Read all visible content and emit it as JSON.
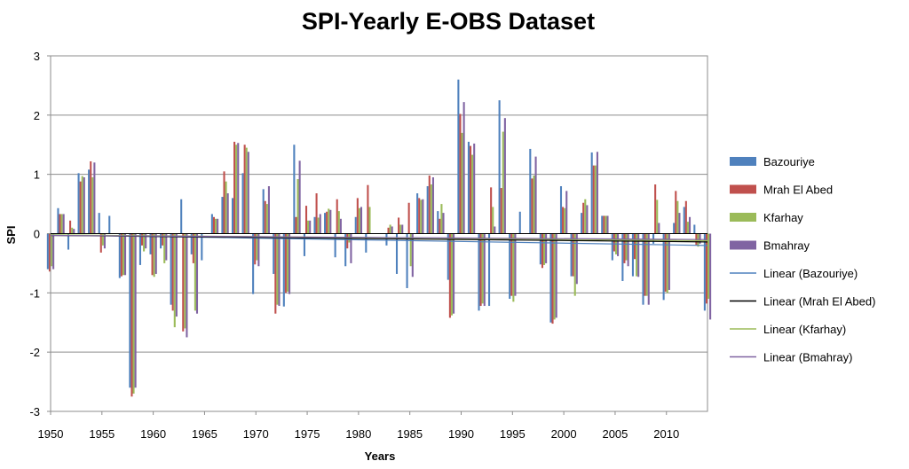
{
  "chart_data": {
    "type": "bar",
    "title": "SPI-Yearly E-OBS Dataset",
    "xlabel": "Years",
    "ylabel": "SPI",
    "ylim": [
      -3,
      3
    ],
    "yticks": [
      3,
      2,
      1,
      0,
      -1,
      -2,
      -3
    ],
    "xlim": [
      1950,
      2014
    ],
    "xticks": [
      1950,
      1955,
      1960,
      1965,
      1970,
      1975,
      1980,
      1985,
      1990,
      1995,
      2000,
      2005,
      2010
    ],
    "grid": true,
    "legend_position": "right",
    "colors": {
      "Bazouriye": "#4f81bd",
      "Mrah El Abed": "#c0504d",
      "Kfarhay": "#9bbb59",
      "Bmahray": "#8064a2",
      "Linear (Bazouriye)": "#4f81bd",
      "Linear (Mrah El Abed)": "#000000",
      "Linear (Kfarhay)": "#9bbb59",
      "Linear (Bmahray)": "#8064a2"
    },
    "years": [
      1950,
      1951,
      1952,
      1953,
      1954,
      1955,
      1956,
      1957,
      1958,
      1959,
      1960,
      1961,
      1962,
      1963,
      1964,
      1965,
      1966,
      1967,
      1968,
      1969,
      1970,
      1971,
      1972,
      1973,
      1974,
      1975,
      1976,
      1977,
      1978,
      1979,
      1980,
      1981,
      1982,
      1983,
      1984,
      1985,
      1986,
      1987,
      1988,
      1989,
      1990,
      1991,
      1992,
      1993,
      1994,
      1995,
      1996,
      1997,
      1998,
      1999,
      2000,
      2001,
      2002,
      2003,
      2004,
      2005,
      2006,
      2007,
      2008,
      2009,
      2010,
      2011,
      2012,
      2013,
      2014
    ],
    "series": [
      {
        "name": "Bazouriye",
        "values": [
          -0.6,
          0.43,
          -0.27,
          1.02,
          1.08,
          0.35,
          0.3,
          -0.75,
          -2.6,
          -0.53,
          -0.35,
          -0.25,
          -1.2,
          0.58,
          -0.35,
          -0.45,
          0.33,
          0.62,
          0.6,
          1.02,
          -1.02,
          0.75,
          -0.68,
          -1.23,
          1.5,
          -0.38,
          0.28,
          0.35,
          -0.4,
          -0.55,
          0.28,
          -0.32,
          0.0,
          -0.2,
          -0.68,
          -0.92,
          0.68,
          0.8,
          0.38,
          -0.78,
          2.6,
          1.55,
          -1.3,
          -1.22,
          2.25,
          -1.1,
          0.37,
          1.43,
          -0.52,
          -1.5,
          0.8,
          -0.72,
          0.35,
          1.37,
          0.3,
          -0.45,
          -0.8,
          -0.72,
          -1.2,
          -0.17,
          -1.12,
          0.18,
          0.45,
          0.15,
          -1.3
        ]
      },
      {
        "name": "Mrah El Abed",
        "values": [
          -0.64,
          0.33,
          0.22,
          0.88,
          1.22,
          -0.32,
          0.0,
          -0.72,
          -2.75,
          -0.2,
          -0.7,
          -0.2,
          -1.3,
          -1.65,
          -0.5,
          0.0,
          0.28,
          1.05,
          1.55,
          1.5,
          -0.52,
          0.55,
          -1.35,
          -1.0,
          0.28,
          0.47,
          0.68,
          0.37,
          0.58,
          -0.25,
          0.6,
          0.82,
          0.0,
          0.1,
          0.27,
          0.52,
          0.6,
          0.98,
          0.25,
          -1.42,
          2.02,
          1.48,
          -1.22,
          0.78,
          0.77,
          -1.05,
          0.0,
          0.93,
          -0.58,
          -1.52,
          0.45,
          -0.72,
          0.52,
          1.15,
          0.3,
          -0.3,
          -0.5,
          -0.43,
          -1.05,
          0.83,
          -0.98,
          0.72,
          0.55,
          -0.2,
          -1.18
        ]
      },
      {
        "name": "Kfarhay",
        "values": [
          -0.55,
          0.33,
          0.1,
          0.97,
          0.95,
          -0.2,
          0.0,
          -0.7,
          -2.7,
          -0.3,
          -0.73,
          -0.5,
          -1.58,
          -1.6,
          -1.3,
          0.0,
          0.25,
          0.88,
          1.5,
          1.45,
          -0.45,
          0.5,
          -1.2,
          -0.98,
          0.92,
          0.22,
          0.27,
          0.42,
          0.38,
          -0.15,
          0.43,
          0.45,
          0.0,
          0.15,
          0.15,
          -0.55,
          0.57,
          0.83,
          0.5,
          -1.38,
          1.7,
          1.33,
          -1.18,
          0.45,
          1.72,
          -1.15,
          0.0,
          0.98,
          -0.53,
          -1.45,
          0.43,
          -1.05,
          0.58,
          1.15,
          0.3,
          -0.35,
          -0.45,
          -0.72,
          -1.05,
          0.57,
          -1.0,
          0.55,
          0.2,
          -0.22,
          -1.1
        ]
      },
      {
        "name": "Bmahray",
        "values": [
          -0.6,
          0.33,
          0.08,
          0.95,
          1.2,
          -0.25,
          0.0,
          -0.7,
          -2.6,
          -0.25,
          -0.68,
          -0.45,
          -1.4,
          -1.75,
          -1.35,
          0.0,
          0.25,
          0.68,
          1.53,
          1.38,
          -0.55,
          0.8,
          -1.22,
          -1.02,
          1.23,
          0.22,
          0.33,
          0.4,
          0.25,
          -0.5,
          0.45,
          0.0,
          0.0,
          0.12,
          0.15,
          -0.73,
          0.58,
          0.95,
          0.35,
          -1.35,
          2.22,
          1.52,
          -1.22,
          0.12,
          1.95,
          -1.05,
          0.0,
          1.3,
          -0.5,
          -1.42,
          0.72,
          -0.85,
          0.48,
          1.38,
          0.3,
          -0.38,
          -0.55,
          -0.73,
          -1.2,
          0.18,
          -0.95,
          0.35,
          0.28,
          -0.17,
          -1.45
        ]
      }
    ],
    "trendlines": [
      {
        "name": "Linear (Bazouriye)",
        "start": [
          1950,
          -0.02
        ],
        "end": [
          2014,
          -0.2
        ]
      },
      {
        "name": "Linear (Mrah El Abed)",
        "start": [
          1950,
          -0.03
        ],
        "end": [
          2014,
          -0.14
        ]
      },
      {
        "name": "Linear (Kfarhay)",
        "start": [
          1950,
          -0.02
        ],
        "end": [
          2014,
          -0.12
        ]
      },
      {
        "name": "Linear (Bmahray)",
        "start": [
          1950,
          -0.03
        ],
        "end": [
          2014,
          -0.1
        ]
      }
    ],
    "legend": [
      "Bazouriye",
      "Mrah El Abed",
      "Kfarhay",
      "Bmahray",
      "Linear (Bazouriye)",
      "Linear (Mrah El Abed)",
      "Linear (Kfarhay)",
      "Linear (Bmahray)"
    ]
  }
}
